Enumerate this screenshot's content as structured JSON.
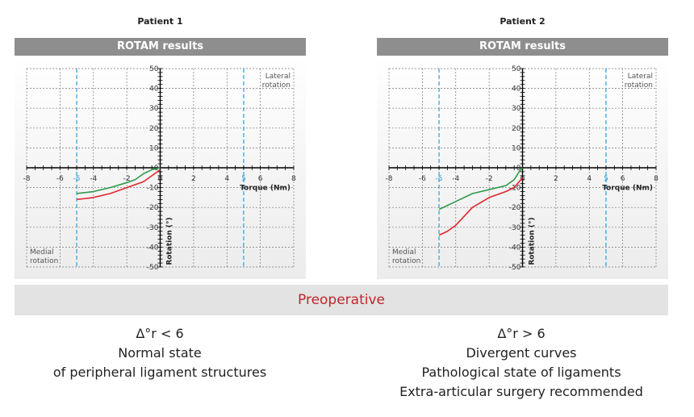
{
  "chart_data": [
    {
      "type": "line",
      "title": "Patient 1",
      "header": "ROTAM results",
      "xlabel": "Torque (Nm)",
      "ylabel": "Rotation (°)",
      "xlim": [
        -8,
        8
      ],
      "ylim": [
        -50,
        50
      ],
      "xticks": [
        -8,
        -6,
        -4,
        -2,
        0,
        2,
        4,
        6,
        8
      ],
      "yticks": [
        50,
        40,
        30,
        20,
        10,
        0,
        -10,
        -20,
        -30,
        -40,
        -50
      ],
      "markers": [
        {
          "x": -5,
          "label": "-5"
        },
        {
          "x": 5,
          "label": "5"
        }
      ],
      "marker_color": "#2a9fd6",
      "annotations": {
        "lateral": [
          "Lateral",
          "rotation"
        ],
        "medial": [
          "Medial",
          "rotation"
        ]
      },
      "series": [
        {
          "name": "green",
          "color": "#2e9a4a",
          "x": [
            -5,
            -4,
            -3,
            -2,
            -1.5,
            -1,
            -0.5,
            0
          ],
          "y": [
            -13,
            -12,
            -10,
            -7.5,
            -6,
            -3,
            -1,
            0
          ]
        },
        {
          "name": "red",
          "color": "#e0262e",
          "x": [
            -5,
            -4,
            -3,
            -2,
            -1,
            -0.5,
            0
          ],
          "y": [
            -16,
            -15,
            -13,
            -10,
            -7,
            -4,
            -1
          ]
        }
      ]
    },
    {
      "type": "line",
      "title": "Patient 2",
      "header": "ROTAM results",
      "xlabel": "Torque (Nm)",
      "ylabel": "Rotation (°)",
      "xlim": [
        -8,
        8
      ],
      "ylim": [
        -50,
        50
      ],
      "xticks": [
        -8,
        -6,
        -4,
        -2,
        0,
        2,
        4,
        6,
        8
      ],
      "yticks": [
        50,
        40,
        30,
        20,
        10,
        0,
        -10,
        -20,
        -30,
        -40,
        -50
      ],
      "markers": [
        {
          "x": -5,
          "label": "-5"
        },
        {
          "x": 5,
          "label": "5"
        }
      ],
      "marker_color": "#2a9fd6",
      "annotations": {
        "lateral": [
          "Lateral",
          "rotation"
        ],
        "medial": [
          "Medial",
          "rotation"
        ]
      },
      "series": [
        {
          "name": "green",
          "color": "#2e9a4a",
          "x": [
            -5,
            -4.5,
            -4,
            -3,
            -2,
            -1,
            -0.5,
            -0.2,
            0
          ],
          "y": [
            -21,
            -19,
            -17,
            -13,
            -11,
            -9,
            -6,
            -2,
            0
          ]
        },
        {
          "name": "red",
          "color": "#e0262e",
          "x": [
            -5,
            -4.5,
            -4,
            -3,
            -2,
            -1,
            -0.5,
            0
          ],
          "y": [
            -34,
            -32,
            -29,
            -20,
            -15,
            -12,
            -10,
            -5
          ]
        }
      ]
    }
  ],
  "banner": "Preoperative",
  "left_desc": [
    "Δ°r < 6",
    "Normal state",
    "of peripheral ligament structures"
  ],
  "right_desc": [
    "Δ°r > 6",
    "Divergent curves",
    "Pathological state of ligaments",
    "Extra-articular surgery recommended"
  ]
}
